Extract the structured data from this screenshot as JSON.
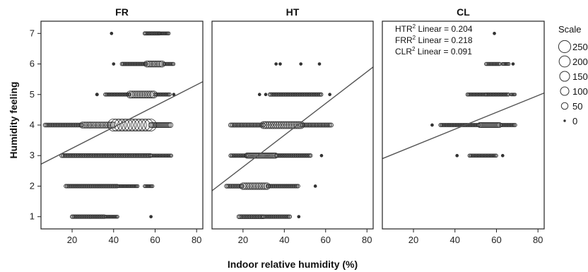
{
  "chart_data": {
    "type": "scatter",
    "xlabel": "Indoor relative humidity (%)",
    "ylabel": "Humidity feeling",
    "xlim": [
      5,
      83
    ],
    "ylim": [
      0.6,
      7.4
    ],
    "x_ticks": [
      "20",
      "40",
      "60",
      "80"
    ],
    "y_ticks": [
      "1",
      "2",
      "3",
      "4",
      "5",
      "6",
      "7"
    ],
    "panels": [
      {
        "title": "FR",
        "fit_line": [
          [
            5,
            2.72
          ],
          [
            83,
            5.42
          ]
        ],
        "clusters": [
          {
            "y": 7,
            "points": [
              [
                39,
                1
              ]
            ],
            "runs": [
              [
                55,
                62,
                4
              ],
              [
                62,
                67,
                2
              ]
            ]
          },
          {
            "y": 6,
            "points": [
              [
                40,
                1
              ]
            ],
            "runs": [
              [
                44,
                56,
                4
              ],
              [
                56,
                64,
                40
              ],
              [
                64,
                69,
                3
              ]
            ]
          },
          {
            "y": 5,
            "points": [
              [
                32,
                2
              ],
              [
                69,
                1
              ]
            ],
            "runs": [
              [
                36,
                48,
                4
              ],
              [
                48,
                60,
                60
              ],
              [
                60,
                67,
                4
              ]
            ]
          },
          {
            "y": 4,
            "points": [],
            "runs": [
              [
                7,
                25,
                8
              ],
              [
                25,
                40,
                40
              ],
              [
                40,
                58,
                250
              ],
              [
                58,
                68,
                20
              ]
            ]
          },
          {
            "y": 3,
            "points": [],
            "runs": [
              [
                15,
                58,
                8
              ],
              [
                58,
                68,
                3
              ]
            ]
          },
          {
            "y": 2,
            "points": [],
            "runs": [
              [
                17,
                42,
                6
              ],
              [
                42,
                52,
                2
              ],
              [
                55,
                59,
                2
              ]
            ]
          },
          {
            "y": 1,
            "points": [
              [
                58,
                1
              ]
            ],
            "runs": [
              [
                20,
                36,
                6
              ],
              [
                36,
                42,
                2
              ]
            ]
          }
        ]
      },
      {
        "title": "HT",
        "annotations": [],
        "fit_line": [
          [
            5,
            1.85
          ],
          [
            83,
            5.9
          ]
        ],
        "clusters": [
          {
            "y": 6,
            "points": [
              [
                36,
                1
              ],
              [
                38,
                1
              ],
              [
                48,
                1
              ],
              [
                57,
                1
              ]
            ],
            "runs": []
          },
          {
            "y": 5,
            "points": [
              [
                28,
                1
              ],
              [
                31,
                1
              ],
              [
                62,
                1
              ]
            ],
            "runs": [
              [
                33,
                58,
                5
              ]
            ]
          },
          {
            "y": 4,
            "points": [],
            "runs": [
              [
                14,
                30,
                10
              ],
              [
                30,
                48,
                60
              ],
              [
                48,
                63,
                10
              ]
            ]
          },
          {
            "y": 3,
            "points": [
              [
                58,
                1
              ]
            ],
            "runs": [
              [
                14,
                22,
                5
              ],
              [
                22,
                36,
                25
              ],
              [
                36,
                53,
                6
              ]
            ]
          },
          {
            "y": 2,
            "points": [
              [
                55,
                1
              ]
            ],
            "runs": [
              [
                12,
                20,
                8
              ],
              [
                20,
                32,
                50
              ],
              [
                32,
                47,
                6
              ]
            ]
          },
          {
            "y": 1,
            "points": [
              [
                47,
                1
              ]
            ],
            "runs": [
              [
                18,
                30,
                8
              ],
              [
                30,
                43,
                6
              ]
            ]
          }
        ]
      },
      {
        "title": "CL",
        "annotations": [
          {
            "prefix": "HTR",
            "sup": "2",
            "text": " Linear = 0.204"
          },
          {
            "prefix": "FRR",
            "sup": "2",
            "text": " Linear = 0.218"
          },
          {
            "prefix": "CLR",
            "sup": "2",
            "text": " Linear = 0.091"
          }
        ],
        "fit_line": [
          [
            5,
            2.9
          ],
          [
            83,
            5.05
          ]
        ],
        "clusters": [
          {
            "y": 7,
            "points": [
              [
                59,
                1
              ]
            ],
            "runs": []
          },
          {
            "y": 6,
            "points": [
              [
                68,
                1
              ]
            ],
            "runs": [
              [
                55,
                62,
                3
              ],
              [
                63,
                66,
                2
              ]
            ]
          },
          {
            "y": 5,
            "points": [],
            "runs": [
              [
                46,
                55,
                3
              ],
              [
                55,
                66,
                4
              ],
              [
                67,
                69,
                1
              ]
            ]
          },
          {
            "y": 4,
            "points": [
              [
                29,
                1
              ]
            ],
            "runs": [
              [
                33,
                52,
                4
              ],
              [
                52,
                62,
                20
              ],
              [
                62,
                69,
                4
              ]
            ]
          },
          {
            "y": 3,
            "points": [
              [
                41,
                1
              ],
              [
                63,
                1
              ]
            ],
            "runs": [
              [
                47,
                60,
                3
              ]
            ]
          }
        ]
      }
    ],
    "legend": {
      "title": "Scale",
      "placement": "right",
      "entries": [
        {
          "label": "250",
          "value": 250
        },
        {
          "label": "200",
          "value": 200
        },
        {
          "label": "150",
          "value": 150
        },
        {
          "label": "100",
          "value": 100
        },
        {
          "label": "50",
          "value": 50
        },
        {
          "label": "0",
          "value": 0
        }
      ]
    },
    "colors": {
      "marker": "#333333",
      "line": "#555555",
      "frame": "#222222"
    }
  }
}
